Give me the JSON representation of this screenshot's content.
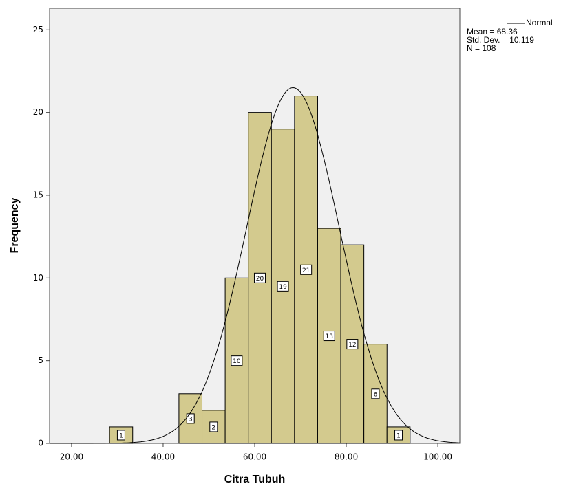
{
  "chart_data": {
    "type": "histogram",
    "x_label": "Citra Tubuh",
    "y_label": "Frequency",
    "bins": [
      28.3,
      33.35,
      38.4,
      43.45,
      48.5,
      53.55,
      58.6,
      63.65,
      68.7,
      73.75,
      78.8,
      83.85,
      88.9,
      93.95
    ],
    "counts": [
      1,
      0,
      0,
      3,
      2,
      10,
      20,
      19,
      21,
      13,
      12,
      6,
      1
    ],
    "color": "#d3ca8e",
    "xlim": [
      15.2,
      104.8
    ],
    "xticks": [
      {
        "value": 20,
        "label": "20.00"
      },
      {
        "value": 40,
        "label": "40.00"
      },
      {
        "value": 60,
        "label": "60.00"
      },
      {
        "value": 80,
        "label": "80.00"
      },
      {
        "value": 100,
        "label": "100.00"
      }
    ],
    "ylim": [
      0,
      26.3
    ],
    "yticks": [
      0,
      5,
      10,
      15,
      20,
      25
    ],
    "normal": {
      "name": "Normal",
      "stats": [
        {
          "label": "Mean = 68.36",
          "value": 68.36
        },
        {
          "label": "Std. Dev. = 10.119",
          "value": 10.119
        },
        {
          "label": "N = 108",
          "value": 108
        }
      ]
    }
  }
}
